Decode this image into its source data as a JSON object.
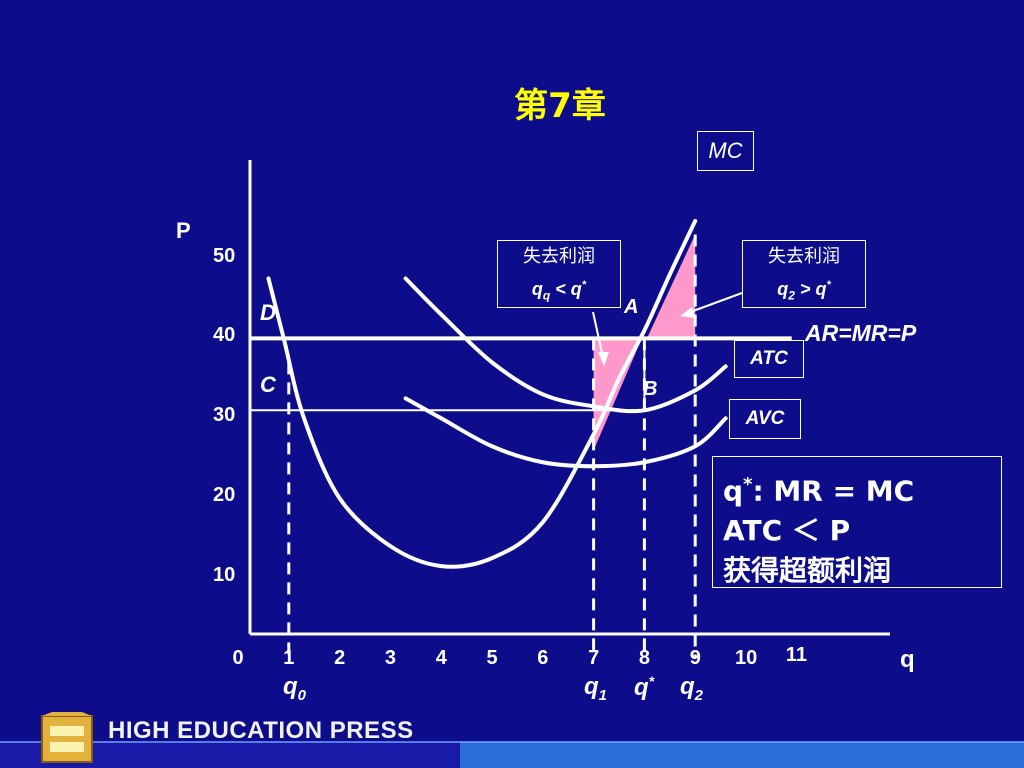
{
  "title": "第7章",
  "chart_data": {
    "type": "line",
    "xlabel": "q",
    "ylabel": "P",
    "xlim": [
      0,
      11
    ],
    "ylim": [
      0,
      58
    ],
    "x_ticks": [
      "0",
      "1",
      "2",
      "3",
      "4",
      "5",
      "6",
      "7",
      "8",
      "9",
      "10",
      "11"
    ],
    "y_ticks": [
      "10",
      "20",
      "30",
      "40",
      "50"
    ],
    "price_line": {
      "name": "AR=MR=P",
      "value": 40
    },
    "c_line": {
      "name": "C",
      "value": 31
    },
    "d_label": "D",
    "series": [
      {
        "name": "MC",
        "points": [
          [
            0.6,
            47.5
          ],
          [
            0.9,
            40
          ],
          [
            1.3,
            30
          ],
          [
            2,
            20
          ],
          [
            3,
            14
          ],
          [
            4,
            11.5
          ],
          [
            5,
            12.5
          ],
          [
            6,
            17
          ],
          [
            7,
            28
          ],
          [
            7.5,
            35
          ],
          [
            8,
            41
          ],
          [
            8.5,
            48
          ],
          [
            9,
            54.7
          ]
        ]
      },
      {
        "name": "ATC",
        "points": [
          [
            3.3,
            47.5
          ],
          [
            4,
            43
          ],
          [
            5,
            37
          ],
          [
            6,
            33
          ],
          [
            7,
            31.5
          ],
          [
            8,
            31
          ],
          [
            9,
            33.5
          ],
          [
            9.6,
            36.5
          ]
        ]
      },
      {
        "name": "AVC",
        "points": [
          [
            3.3,
            32.5
          ],
          [
            4,
            30
          ],
          [
            5,
            26.5
          ],
          [
            6,
            24.5
          ],
          [
            7,
            24
          ],
          [
            8,
            24.5
          ],
          [
            9,
            26.5
          ],
          [
            9.6,
            30
          ]
        ]
      }
    ],
    "markers": [
      {
        "name": "q0",
        "x": 1
      },
      {
        "name": "q1",
        "x": 7
      },
      {
        "name": "q*",
        "x": 8
      },
      {
        "name": "q2",
        "x": 9
      }
    ],
    "points_labels": {
      "A": "A",
      "B": "B"
    },
    "x_marker_labels": {
      "q0": "q",
      "q0_sub": "0",
      "q1": "q",
      "q1_sub": "1",
      "qstar": "q",
      "qstar_sup": "*",
      "q2": "q",
      "q2_sub": "2"
    }
  },
  "callouts": {
    "left": {
      "line1": "失去利润",
      "line2_q": "q",
      "line2_sub": "q",
      "line2_rest": " < q",
      "line2_sup": "*"
    },
    "right": {
      "line1": "失去利润",
      "line2_q": "q",
      "line2_sub": "2",
      "line2_rest": " > q",
      "line2_sup": "*"
    }
  },
  "curve_labels": {
    "mc": "MC",
    "atc": "ATC",
    "avc": "AVC",
    "price": "AR=MR=P"
  },
  "note": {
    "line1_q": "q",
    "line1_sup": "*",
    "line1_rest": ": MR = MC",
    "line2": "ATC ＜ P",
    "line3": "获得超额利润"
  },
  "footer": {
    "text": "HIGH EDUCATION PRESS"
  },
  "colors": {
    "background": "#0d0d8c",
    "title": "#ffff00",
    "shade": "#ff99cc",
    "curve": "#ffffff"
  }
}
